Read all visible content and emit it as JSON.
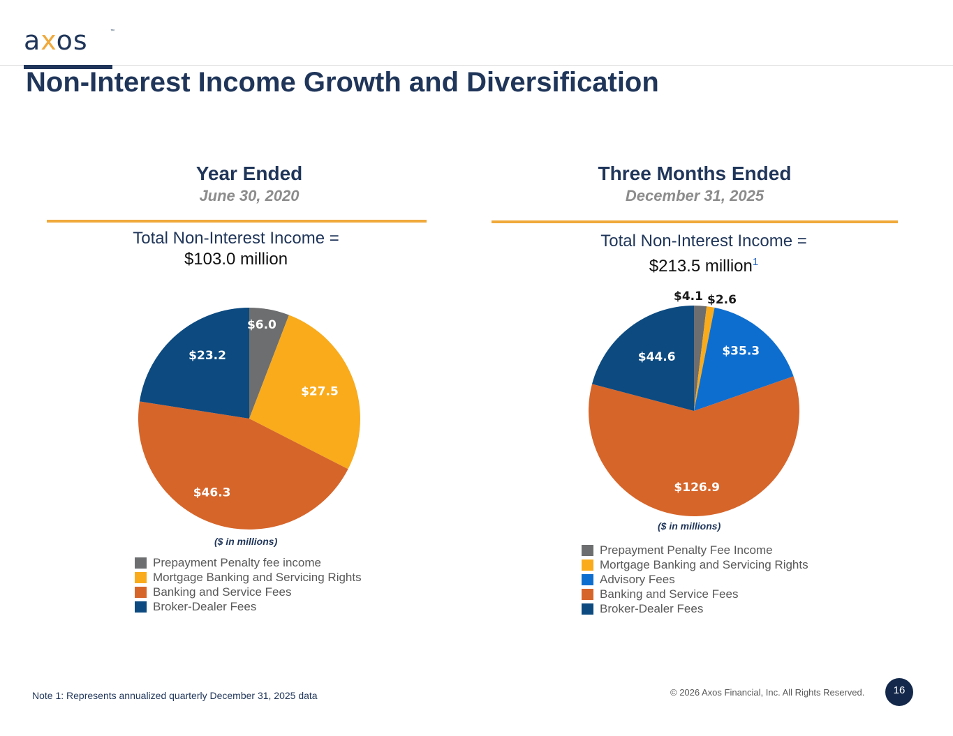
{
  "brand": {
    "logo_text_a": "a",
    "logo_text_x": "x",
    "logo_text_rest": "os",
    "trademark": "™"
  },
  "page": {
    "title": "Non-Interest Income Growth and Diversification",
    "note": "Note 1: Represents annualized quarterly December 31, 2025 data",
    "copyright": "© 2026 Axos Financial, Inc. All Rights Reserved.",
    "page_number": "16"
  },
  "colors": {
    "navy": "#1f3559",
    "orange_rule": "#f0a93b"
  },
  "chart_data": [
    {
      "type": "pie",
      "title": "Year Ended",
      "subtitle": "June 30, 2020",
      "total_label": "Total Non-Interest Income =",
      "total_value": "$103.0 million",
      "units": "($ in millions)",
      "slices": [
        {
          "name": "Prepayment Penalty fee income",
          "value": 6.0,
          "label": "$6.0",
          "color": "#6d6e70"
        },
        {
          "name": "Mortgage Banking and Servicing Rights",
          "value": 27.5,
          "label": "$27.5",
          "color": "#f9ab1c"
        },
        {
          "name": "Banking and Service Fees",
          "value": 46.3,
          "label": "$46.3",
          "color": "#d6652a"
        },
        {
          "name": "Broker-Dealer Fees",
          "value": 23.2,
          "label": "$23.2",
          "color": "#0c4a80"
        }
      ]
    },
    {
      "type": "pie",
      "title": "Three Months Ended",
      "subtitle": "December 31, 2025",
      "total_label": "Total Non-Interest Income =",
      "total_value": "$213.5 million",
      "total_footnote": "1",
      "units": "($ in millions)",
      "slices": [
        {
          "name": "Prepayment Penalty Fee Income",
          "value": 4.1,
          "label": "$4.1",
          "color": "#6d6e70"
        },
        {
          "name": "Mortgage Banking and Servicing Rights",
          "value": 2.6,
          "label": "$2.6",
          "color": "#f9ab1c"
        },
        {
          "name": "Advisory Fees",
          "value": 35.3,
          "label": "$35.3",
          "color": "#0e6ecf"
        },
        {
          "name": "Banking and Service Fees",
          "value": 126.9,
          "label": "$126.9",
          "color": "#d6652a"
        },
        {
          "name": "Broker-Dealer Fees",
          "value": 44.6,
          "label": "$44.6",
          "color": "#0c4a80"
        }
      ]
    }
  ]
}
